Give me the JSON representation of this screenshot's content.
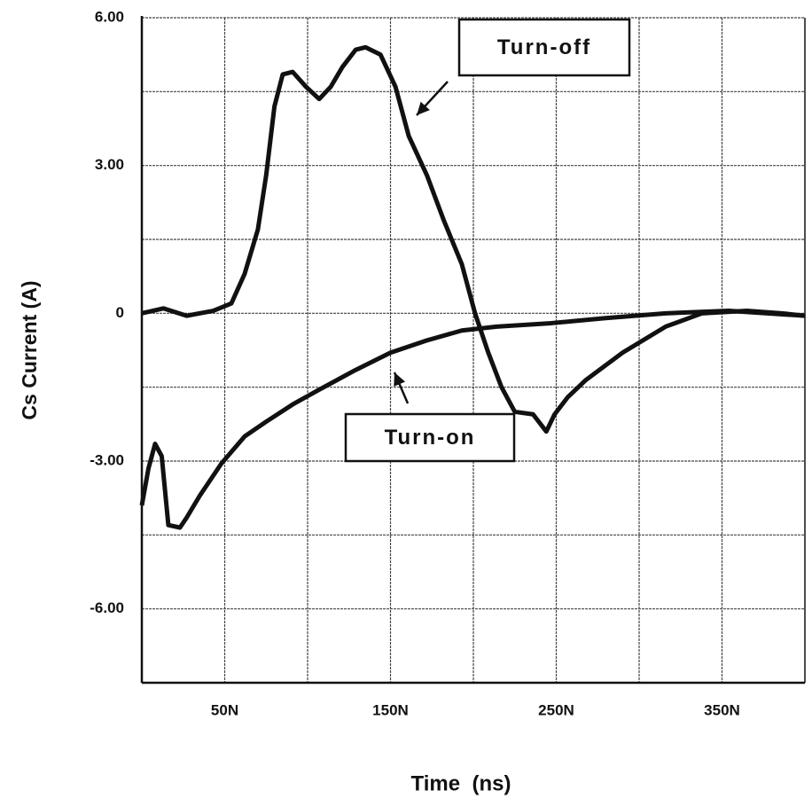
{
  "chart_data": {
    "type": "line",
    "xlabel": "Time  (ns)",
    "ylabel": "Cs Current (A)",
    "xlim": [
      0,
      400
    ],
    "ylim": [
      -7.5,
      6
    ],
    "xticks": [
      {
        "value": 50,
        "label": "50N"
      },
      {
        "value": 150,
        "label": "150N"
      },
      {
        "value": 250,
        "label": "250N"
      },
      {
        "value": 350,
        "label": "350N"
      }
    ],
    "xminor": [
      100,
      200,
      300
    ],
    "yticks": [
      {
        "value": 6,
        "label": "6.00"
      },
      {
        "value": 3,
        "label": "3.00"
      },
      0,
      {
        "value": -3,
        "label": "-3.00"
      },
      {
        "value": -6,
        "label": "-6.00"
      }
    ],
    "yminor": [
      4.5,
      1.5,
      -1.5,
      -4.5
    ],
    "grid": true,
    "series": [
      {
        "name": "Turn-off",
        "color": "#111111",
        "x": [
          0,
          13,
          27,
          43,
          54,
          62,
          70,
          75,
          80,
          85,
          91,
          99,
          107,
          114,
          121,
          129,
          135,
          144,
          153,
          161,
          172,
          182,
          193,
          201,
          209,
          217,
          225,
          236,
          244,
          249,
          257,
          268,
          290,
          316,
          338,
          365,
          386,
          400
        ],
        "values": [
          0,
          0.1,
          -0.05,
          0.05,
          0.2,
          0.8,
          1.7,
          2.8,
          4.2,
          4.85,
          4.9,
          4.6,
          4.35,
          4.6,
          5.0,
          5.35,
          5.4,
          5.25,
          4.6,
          3.6,
          2.8,
          1.9,
          1.0,
          0,
          -0.8,
          -1.5,
          -2.0,
          -2.05,
          -2.4,
          -2.05,
          -1.7,
          -1.35,
          -0.8,
          -0.27,
          0,
          0.05,
          0,
          -0.05
        ]
      },
      {
        "name": "Turn-on",
        "color": "#111111",
        "x": [
          0,
          4,
          8,
          12,
          16,
          23,
          27,
          35,
          48,
          62,
          75,
          91,
          107,
          129,
          150,
          172,
          193,
          214,
          247,
          279,
          316,
          354,
          400
        ],
        "values": [
          -3.9,
          -3.15,
          -2.65,
          -2.9,
          -4.3,
          -4.35,
          -4.15,
          -3.7,
          -3.05,
          -2.5,
          -2.2,
          -1.85,
          -1.55,
          -1.15,
          -0.8,
          -0.55,
          -0.35,
          -0.27,
          -0.2,
          -0.1,
          0,
          0.05,
          -0.05
        ]
      }
    ]
  }
}
